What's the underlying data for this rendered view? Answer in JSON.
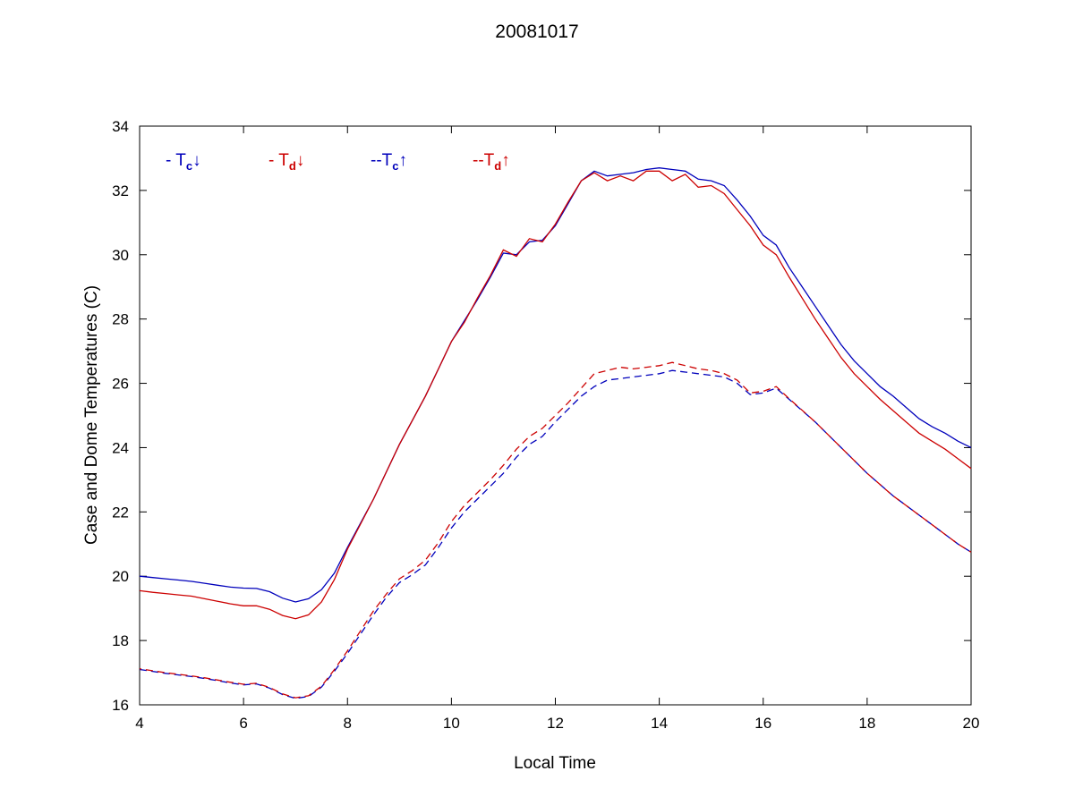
{
  "chart_data": {
    "type": "line",
    "title": "20081017",
    "xlabel": "Local Time",
    "ylabel": "Case and Dome Temperatures (C)",
    "xlim": [
      4,
      20
    ],
    "ylim": [
      16,
      34
    ],
    "xticks": [
      4,
      6,
      8,
      10,
      12,
      14,
      16,
      18,
      20
    ],
    "yticks": [
      16,
      18,
      20,
      22,
      24,
      26,
      28,
      30,
      32,
      34
    ],
    "grid": false,
    "legend_position": "top-left-inside",
    "colors": {
      "blue": "#0000bb",
      "red": "#cc0000"
    },
    "x": [
      4,
      4.25,
      4.5,
      4.75,
      5,
      5.25,
      5.5,
      5.75,
      6,
      6.25,
      6.5,
      6.75,
      7,
      7.25,
      7.5,
      7.75,
      8,
      8.25,
      8.5,
      8.75,
      9,
      9.25,
      9.5,
      9.75,
      10,
      10.25,
      10.5,
      10.75,
      11,
      11.25,
      11.5,
      11.75,
      12,
      12.25,
      12.5,
      12.75,
      13,
      13.25,
      13.5,
      13.75,
      14,
      14.25,
      14.5,
      14.75,
      15,
      15.25,
      15.5,
      15.75,
      16,
      16.25,
      16.5,
      16.75,
      17,
      17.25,
      17.5,
      17.75,
      18,
      18.25,
      18.5,
      18.75,
      19,
      19.25,
      19.5,
      19.75,
      20
    ],
    "series": [
      {
        "name": "tc-down",
        "legend_prefix": "- ",
        "legend_main": "T",
        "legend_sub": "c",
        "legend_arrow": "↓",
        "color": "#0000bb",
        "style": "solid",
        "values": [
          20.0,
          19.96,
          19.92,
          19.88,
          19.84,
          19.78,
          19.72,
          19.66,
          19.63,
          19.62,
          19.52,
          19.32,
          19.2,
          19.3,
          19.58,
          20.1,
          20.9,
          21.65,
          22.4,
          23.25,
          24.1,
          24.85,
          25.6,
          26.45,
          27.3,
          27.95,
          28.6,
          29.3,
          30.05,
          30.0,
          30.4,
          30.45,
          30.9,
          31.6,
          32.3,
          32.6,
          32.45,
          32.5,
          32.55,
          32.65,
          32.7,
          32.65,
          32.6,
          32.35,
          32.3,
          32.15,
          31.7,
          31.2,
          30.6,
          30.3,
          29.6,
          29.0,
          28.4,
          27.8,
          27.2,
          26.7,
          26.3,
          25.9,
          25.6,
          25.25,
          24.9,
          24.65,
          24.45,
          24.2,
          24.0
        ]
      },
      {
        "name": "td-down",
        "legend_prefix": "- ",
        "legend_main": "T",
        "legend_sub": "d",
        "legend_arrow": "↓",
        "color": "#cc0000",
        "style": "solid",
        "values": [
          19.55,
          19.5,
          19.46,
          19.42,
          19.38,
          19.3,
          19.22,
          19.14,
          19.08,
          19.08,
          18.97,
          18.78,
          18.68,
          18.8,
          19.2,
          19.9,
          20.85,
          21.62,
          22.4,
          23.25,
          24.1,
          24.85,
          25.6,
          26.45,
          27.3,
          27.9,
          28.65,
          29.35,
          30.15,
          29.95,
          30.5,
          30.4,
          30.95,
          31.65,
          32.3,
          32.55,
          32.3,
          32.45,
          32.3,
          32.6,
          32.6,
          32.3,
          32.5,
          32.1,
          32.15,
          31.9,
          31.4,
          30.9,
          30.3,
          30.0,
          29.3,
          28.65,
          28.0,
          27.4,
          26.8,
          26.3,
          25.9,
          25.5,
          25.15,
          24.8,
          24.45,
          24.2,
          23.95,
          23.65,
          23.35
        ]
      },
      {
        "name": "tc-up",
        "legend_prefix": "--",
        "legend_main": "T",
        "legend_sub": "c",
        "legend_arrow": "↑",
        "color": "#0000bb",
        "style": "dashed",
        "values": [
          17.1,
          17.04,
          16.98,
          16.93,
          16.88,
          16.82,
          16.75,
          16.68,
          16.62,
          16.65,
          16.52,
          16.32,
          16.2,
          16.26,
          16.55,
          17.05,
          17.6,
          18.2,
          18.8,
          19.35,
          19.8,
          20.05,
          20.35,
          20.9,
          21.5,
          22.0,
          22.4,
          22.8,
          23.2,
          23.7,
          24.1,
          24.35,
          24.8,
          25.2,
          25.6,
          25.9,
          26.1,
          26.15,
          26.2,
          26.25,
          26.3,
          26.4,
          26.35,
          26.3,
          26.25,
          26.2,
          26.0,
          25.65,
          25.7,
          25.85,
          25.5,
          25.15,
          24.8,
          24.4,
          24.0,
          23.6,
          23.2,
          22.85,
          22.5,
          22.2,
          21.9,
          21.6,
          21.3,
          21.0,
          20.75
        ]
      },
      {
        "name": "td-up",
        "legend_prefix": "--",
        "legend_main": "T",
        "legend_sub": "d",
        "legend_arrow": "↑",
        "color": "#cc0000",
        "style": "dashed",
        "values": [
          17.12,
          17.06,
          17.0,
          16.95,
          16.9,
          16.84,
          16.77,
          16.7,
          16.64,
          16.67,
          16.54,
          16.34,
          16.22,
          16.28,
          16.58,
          17.1,
          17.68,
          18.3,
          18.92,
          19.45,
          19.92,
          20.18,
          20.5,
          21.05,
          21.7,
          22.2,
          22.6,
          23.0,
          23.45,
          23.95,
          24.35,
          24.6,
          25.0,
          25.4,
          25.85,
          26.3,
          26.4,
          26.5,
          26.45,
          26.5,
          26.55,
          26.65,
          26.55,
          26.45,
          26.4,
          26.3,
          26.1,
          25.7,
          25.75,
          25.9,
          25.52,
          25.16,
          24.8,
          24.4,
          24.0,
          23.6,
          23.2,
          22.85,
          22.5,
          22.2,
          21.9,
          21.6,
          21.3,
          21.0,
          20.75
        ]
      }
    ]
  }
}
